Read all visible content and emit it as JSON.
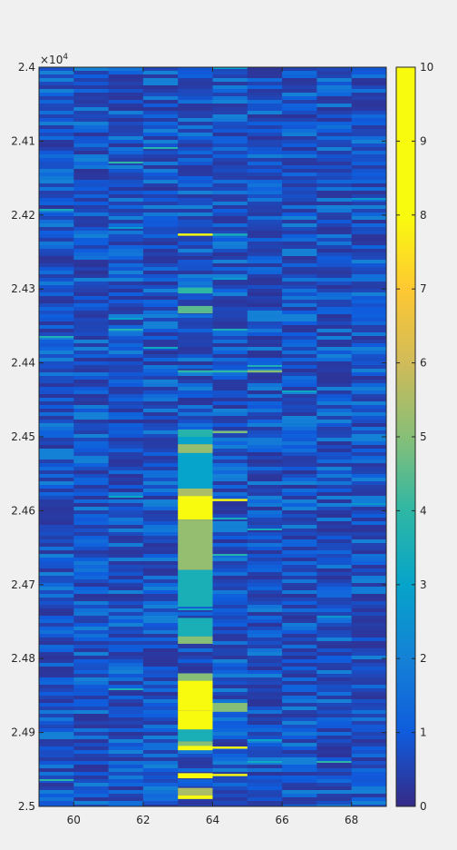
{
  "chart_data": {
    "type": "heatmap",
    "title": "",
    "xlabel": "",
    "ylabel": "",
    "xlim": [
      59,
      69
    ],
    "ylim": [
      24000,
      25000
    ],
    "y_reversed": true,
    "y_exponent_label": "×10",
    "y_exponent_power": "4",
    "x_ticks": [
      {
        "value": 60,
        "label": "60"
      },
      {
        "value": 62,
        "label": "62"
      },
      {
        "value": 64,
        "label": "64"
      },
      {
        "value": 66,
        "label": "66"
      },
      {
        "value": 68,
        "label": "68"
      }
    ],
    "y_ticks": [
      {
        "value": 24000,
        "label": "2.4"
      },
      {
        "value": 24100,
        "label": "2.41"
      },
      {
        "value": 24200,
        "label": "2.42"
      },
      {
        "value": 24300,
        "label": "2.43"
      },
      {
        "value": 24400,
        "label": "2.44"
      },
      {
        "value": 24500,
        "label": "2.45"
      },
      {
        "value": 24600,
        "label": "2.46"
      },
      {
        "value": 24700,
        "label": "2.47"
      },
      {
        "value": 24800,
        "label": "2.48"
      },
      {
        "value": 24900,
        "label": "2.49"
      },
      {
        "value": 25000,
        "label": "2.5"
      }
    ],
    "column_centers": [
      59.5,
      60.5,
      61.5,
      62.5,
      63.5,
      64.5,
      65.5,
      66.5,
      67.5,
      68.5
    ],
    "colormap": "parula",
    "clim": [
      0,
      10
    ],
    "colorbar_ticks": [
      {
        "value": 0,
        "label": "0"
      },
      {
        "value": 1,
        "label": "1"
      },
      {
        "value": 2,
        "label": "2"
      },
      {
        "value": 3,
        "label": "3"
      },
      {
        "value": 4,
        "label": "4"
      },
      {
        "value": 5,
        "label": "5"
      },
      {
        "value": 6,
        "label": "6"
      },
      {
        "value": 7,
        "label": "7"
      },
      {
        "value": 8,
        "label": "8"
      },
      {
        "value": 9,
        "label": "9"
      },
      {
        "value": 10,
        "label": "10"
      }
    ],
    "background_value_range": [
      0.2,
      2.0
    ],
    "features": [
      {
        "column": 63.5,
        "y_start": 24225,
        "y_end": 24228,
        "value": 9.0
      },
      {
        "column": 64.5,
        "y_start": 24225,
        "y_end": 24228,
        "value": 3.5
      },
      {
        "column": 63.5,
        "y_start": 24298,
        "y_end": 24306,
        "value": 4.0
      },
      {
        "column": 63.5,
        "y_start": 24323,
        "y_end": 24333,
        "value": 4.5
      },
      {
        "column": 63.5,
        "y_start": 24410,
        "y_end": 24413,
        "value": 4.0
      },
      {
        "column": 64.5,
        "y_start": 24410,
        "y_end": 24413,
        "value": 4.0
      },
      {
        "column": 65.5,
        "y_start": 24410,
        "y_end": 24413,
        "value": 5.0
      },
      {
        "column": 63.5,
        "y_start": 24490,
        "y_end": 24500,
        "value": 3.8
      },
      {
        "column": 64.5,
        "y_start": 24492,
        "y_end": 24495,
        "value": 5.0
      },
      {
        "column": 63.5,
        "y_start": 24500,
        "y_end": 24510,
        "value": 3.0
      },
      {
        "column": 63.5,
        "y_start": 24510,
        "y_end": 24522,
        "value": 5.2
      },
      {
        "column": 63.5,
        "y_start": 24522,
        "y_end": 24570,
        "value": 3.0
      },
      {
        "column": 63.5,
        "y_start": 24570,
        "y_end": 24580,
        "value": 5.5
      },
      {
        "column": 63.5,
        "y_start": 24580,
        "y_end": 24612,
        "value": 9.8
      },
      {
        "column": 64.5,
        "y_start": 24584,
        "y_end": 24587,
        "value": 8.5
      },
      {
        "column": 63.5,
        "y_start": 24612,
        "y_end": 24680,
        "value": 5.2
      },
      {
        "column": 63.5,
        "y_start": 24680,
        "y_end": 24730,
        "value": 3.5
      },
      {
        "column": 63.5,
        "y_start": 24745,
        "y_end": 24770,
        "value": 3.5
      },
      {
        "column": 63.5,
        "y_start": 24770,
        "y_end": 24780,
        "value": 5.0
      },
      {
        "column": 63.5,
        "y_start": 24820,
        "y_end": 24830,
        "value": 5.0
      },
      {
        "column": 63.5,
        "y_start": 24830,
        "y_end": 24870,
        "value": 9.0
      },
      {
        "column": 63.5,
        "y_start": 24870,
        "y_end": 24896,
        "value": 10.0
      },
      {
        "column": 64.5,
        "y_start": 24860,
        "y_end": 24872,
        "value": 5.0
      },
      {
        "column": 63.5,
        "y_start": 24896,
        "y_end": 24912,
        "value": 3.5
      },
      {
        "column": 63.5,
        "y_start": 24912,
        "y_end": 24918,
        "value": 5.0
      },
      {
        "column": 63.5,
        "y_start": 24918,
        "y_end": 24924,
        "value": 8.0
      },
      {
        "column": 64.5,
        "y_start": 24919,
        "y_end": 24922,
        "value": 8.0
      },
      {
        "column": 63.5,
        "y_start": 24955,
        "y_end": 24962,
        "value": 9.0
      },
      {
        "column": 64.5,
        "y_start": 24956,
        "y_end": 24959,
        "value": 8.5
      },
      {
        "column": 63.5,
        "y_start": 24975,
        "y_end": 24985,
        "value": 5.5
      },
      {
        "column": 63.5,
        "y_start": 24985,
        "y_end": 24990,
        "value": 9.0
      }
    ]
  }
}
